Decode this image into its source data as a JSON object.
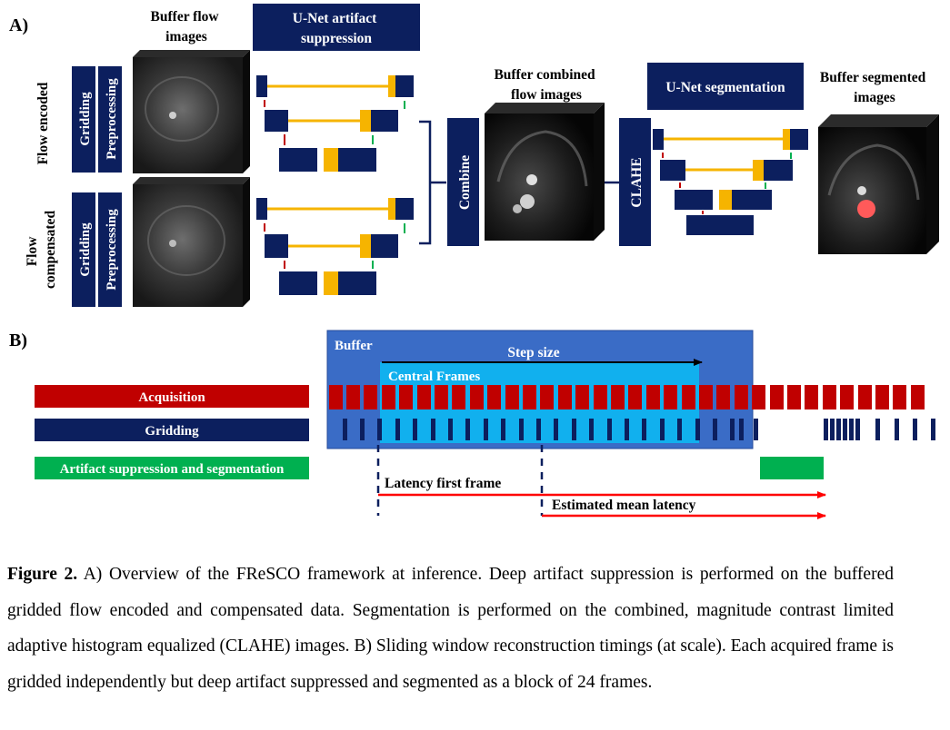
{
  "panel_a": {
    "label": "A)",
    "buffer_flow_title": "Buffer flow\nimages",
    "unet_artifact_title": "U-Net artifact\nsuppression",
    "flow_encoded_label": "Flow encoded",
    "flow_compensated_label": "Flow\ncompensated",
    "gridding_label": "Gridding",
    "preprocessing_label": "Preprocessing",
    "combine_label": "Combine",
    "buffer_combined_title": "Buffer combined\nflow images",
    "unet_segmentation_title": "U-Net segmentation",
    "clahe_label": "CLAHE",
    "buffer_segmented_title": "Buffer segmented\nimages"
  },
  "panel_b": {
    "label": "B)",
    "buffer_label": "Buffer",
    "step_size_label": "Step size",
    "central_frames_label": "Central Frames",
    "acquisition_label": "Acquisition",
    "gridding_label": "Gridding",
    "artifact_label": "Artifact suppression and segmentation",
    "latency_first_label": "Latency first frame",
    "estimated_mean_label": "Estimated mean latency"
  },
  "colors": {
    "navy": "#0c1f5e",
    "red": "#c00000",
    "green": "#00b050",
    "yellow": "#f6b400",
    "buffer_blue": "#3a6cc6",
    "central_cyan": "#11b0ee",
    "arrow_red": "#ff0000"
  },
  "caption": {
    "bold": "Figure 2.",
    "text": " A) Overview of the FReSCO framework at inference. Deep artifact suppression is performed on the buffered gridded flow encoded and compensated data. Segmentation is performed on the combined, magnitude contrast limited adaptive histogram equalized (CLAHE) images. B) Sliding window reconstruction timings (at scale). Each acquired frame is gridded independently but deep artifact suppressed and segmented as a block of 24 frames."
  }
}
